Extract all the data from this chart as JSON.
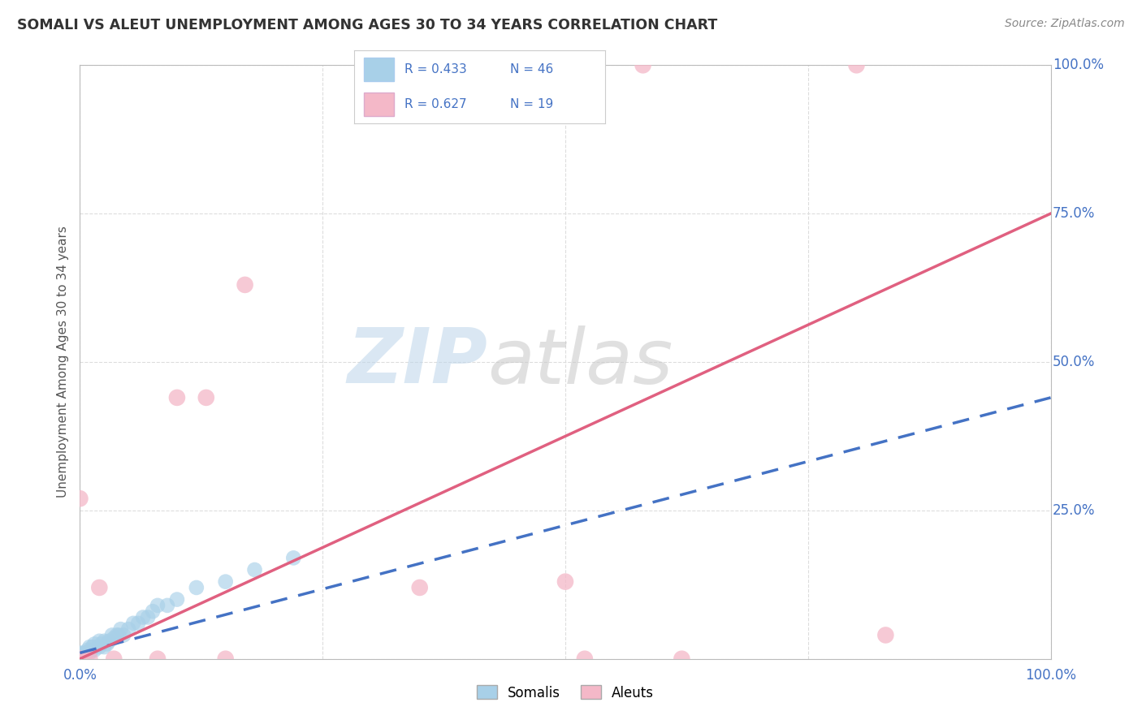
{
  "title": "SOMALI VS ALEUT UNEMPLOYMENT AMONG AGES 30 TO 34 YEARS CORRELATION CHART",
  "source": "Source: ZipAtlas.com",
  "ylabel": "Unemployment Among Ages 30 to 34 years",
  "xlim": [
    0,
    1.0
  ],
  "ylim": [
    0,
    1.0
  ],
  "xticks": [
    0.0,
    0.25,
    0.5,
    0.75,
    1.0
  ],
  "xticklabels_show": [
    "0.0%",
    "100.0%"
  ],
  "xticklabels_pos": [
    0.0,
    1.0
  ],
  "ytick_labels_right": [
    "100.0%",
    "75.0%",
    "50.0%",
    "25.0%"
  ],
  "ytick_positions_right": [
    1.0,
    0.75,
    0.5,
    0.25
  ],
  "somali_color": "#A8D0E8",
  "aleut_color": "#F4B8C8",
  "somali_line_color": "#4472C4",
  "aleut_line_color": "#E06080",
  "R_somali": 0.433,
  "N_somali": 46,
  "R_aleut": 0.627,
  "N_aleut": 19,
  "somali_x": [
    0.0,
    0.0,
    0.0,
    0.0,
    0.0,
    0.0,
    0.0,
    0.0,
    0.0,
    0.0,
    0.005,
    0.005,
    0.007,
    0.008,
    0.01,
    0.01,
    0.012,
    0.013,
    0.015,
    0.015,
    0.02,
    0.02,
    0.022,
    0.025,
    0.025,
    0.028,
    0.03,
    0.033,
    0.035,
    0.038,
    0.04,
    0.042,
    0.045,
    0.05,
    0.055,
    0.06,
    0.065,
    0.07,
    0.075,
    0.08,
    0.09,
    0.1,
    0.12,
    0.15,
    0.18,
    0.22
  ],
  "somali_y": [
    0.0,
    0.0,
    0.0,
    0.0,
    0.0,
    0.005,
    0.005,
    0.007,
    0.008,
    0.01,
    0.005,
    0.01,
    0.01,
    0.015,
    0.01,
    0.02,
    0.015,
    0.02,
    0.015,
    0.025,
    0.02,
    0.03,
    0.025,
    0.02,
    0.03,
    0.025,
    0.03,
    0.04,
    0.035,
    0.04,
    0.04,
    0.05,
    0.04,
    0.05,
    0.06,
    0.06,
    0.07,
    0.07,
    0.08,
    0.09,
    0.09,
    0.1,
    0.12,
    0.13,
    0.15,
    0.17
  ],
  "aleut_x": [
    0.0,
    0.0,
    0.0,
    0.005,
    0.01,
    0.02,
    0.035,
    0.08,
    0.1,
    0.13,
    0.15,
    0.17,
    0.35,
    0.5,
    0.52,
    0.58,
    0.62,
    0.8,
    0.83
  ],
  "aleut_y": [
    0.0,
    0.0,
    0.27,
    0.0,
    0.0,
    0.12,
    0.0,
    0.0,
    0.44,
    0.44,
    0.0,
    0.63,
    0.12,
    0.13,
    0.0,
    1.0,
    0.0,
    1.0,
    0.04
  ],
  "somali_trend_x0": 0.0,
  "somali_trend_y0": 0.01,
  "somali_trend_x1": 1.0,
  "somali_trend_y1": 0.44,
  "aleut_trend_x0": 0.0,
  "aleut_trend_y0": 0.0,
  "aleut_trend_x1": 1.0,
  "aleut_trend_y1": 0.75,
  "grid_color": "#DDDDDD",
  "background_color": "#FFFFFF"
}
